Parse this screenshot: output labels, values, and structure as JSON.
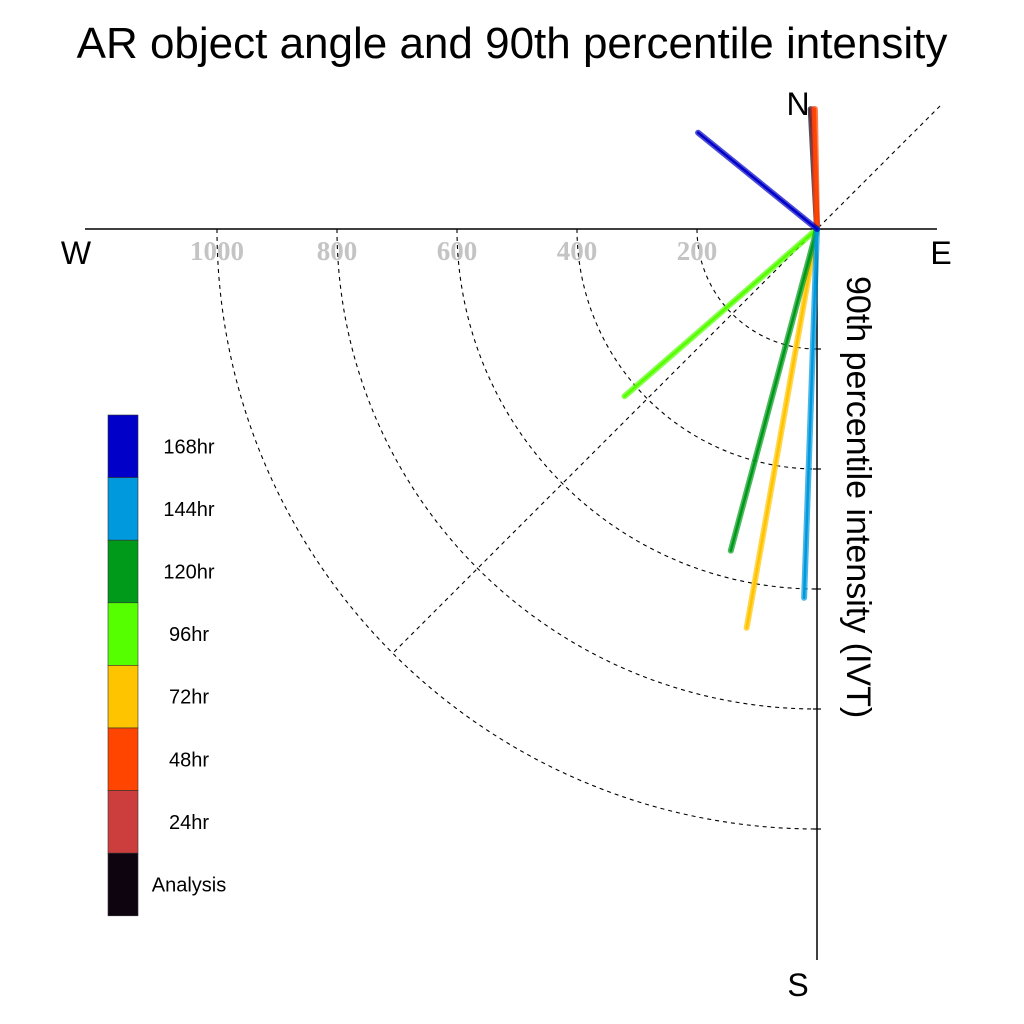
{
  "chart_data": {
    "type": "polar-line",
    "title": "AR object angle and 90th percentile intensity",
    "radial_label": "90th percentile intensity (IVT)",
    "directions": {
      "north": "N",
      "south": "S",
      "east": "E",
      "west": "W"
    },
    "radial_ticks": [
      "1000",
      "800",
      "600",
      "400",
      "200"
    ],
    "radial_tick_values": [
      1000,
      800,
      600,
      400,
      200
    ],
    "rlim": [
      0,
      1200
    ],
    "angle_convention": "degrees clockwise from north",
    "grid": true,
    "grid_diagonal_angles_deg": [
      45,
      225
    ],
    "legend_position": "left",
    "series": [
      {
        "name": "Analysis",
        "color": "#0d0410",
        "angle_deg": 357,
        "intensity": 200
      },
      {
        "name": "24hr",
        "color": "#cc3d3d",
        "angle_deg": 358,
        "intensity": 200
      },
      {
        "name": "48hr",
        "color": "#ff4500",
        "angle_deg": 359,
        "intensity": 200
      },
      {
        "name": "72hr",
        "color": "#ffc400",
        "angle_deg": 190,
        "intensity": 675
      },
      {
        "name": "96hr",
        "color": "#55ff00",
        "angle_deg": 229,
        "intensity": 425
      },
      {
        "name": "120hr",
        "color": "#009a1a",
        "angle_deg": 195,
        "intensity": 555
      },
      {
        "name": "144hr",
        "color": "#0099dd",
        "angle_deg": 182,
        "intensity": 615
      },
      {
        "name": "168hr",
        "color": "#0000c8",
        "angle_deg": 309,
        "intensity": 255
      }
    ],
    "legend_order": [
      "168hr",
      "144hr",
      "120hr",
      "96hr",
      "72hr",
      "48hr",
      "24hr",
      "Analysis"
    ]
  }
}
